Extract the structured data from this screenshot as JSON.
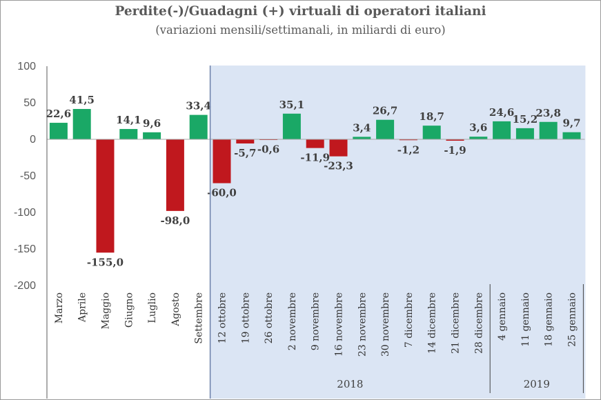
{
  "chart_data": {
    "type": "bar",
    "title": "Perdite(-)/Guadagni (+) virtuali di operatori italiani",
    "subtitle": "(variazioni mensili/settimanali, in miliardi di euro)",
    "categories": [
      "Marzo",
      "Aprile",
      "Maggio",
      "Giugno",
      "Luglio",
      "Agosto",
      "Settembre",
      "12 ottobre",
      "19 ottobre",
      "26 ottobre",
      "2 novembre",
      "9 novembre",
      "16 novembre",
      "23 novembre",
      "30 novembre",
      "7 dicembre",
      "14 dicembre",
      "21 dicembre",
      "28 dicembre",
      "4 gennaio",
      "11 gennaio",
      "18 gennaio",
      "25 gennaio"
    ],
    "values": [
      22.6,
      41.5,
      -155.0,
      14.1,
      9.6,
      -98.0,
      33.4,
      -60.0,
      -5.7,
      -0.6,
      35.1,
      -11.9,
      -23.3,
      3.4,
      26.7,
      -1.2,
      18.7,
      -1.9,
      3.6,
      24.6,
      15.2,
      23.8,
      9.7
    ],
    "data_labels": [
      "22,6",
      "41,5",
      "-155,0",
      "14,1",
      "9,6",
      "-98,0",
      "33,4",
      "-60,0",
      "-5,7",
      "-0,6",
      "35,1",
      "-11,9",
      "-23,3",
      "3,4",
      "26,7",
      "-1,2",
      "18,7",
      "-1,9",
      "3,6",
      "24,6",
      "15,2",
      "23,8",
      "9,7"
    ],
    "y_ticks": [
      "100",
      "50",
      "0",
      "-50",
      "-100",
      "-150",
      "-200"
    ],
    "ylim": [
      -200,
      100
    ],
    "groups": [
      {
        "label": "2018",
        "from": 7,
        "to": 18
      },
      {
        "label": "2019",
        "from": 19,
        "to": 22
      }
    ],
    "shaded_region_start_index": 7,
    "colors": {
      "positive": "#1aa866",
      "negative": "#c0181e",
      "shade": "#dbe5f4"
    },
    "grid": false,
    "legend": "none"
  }
}
